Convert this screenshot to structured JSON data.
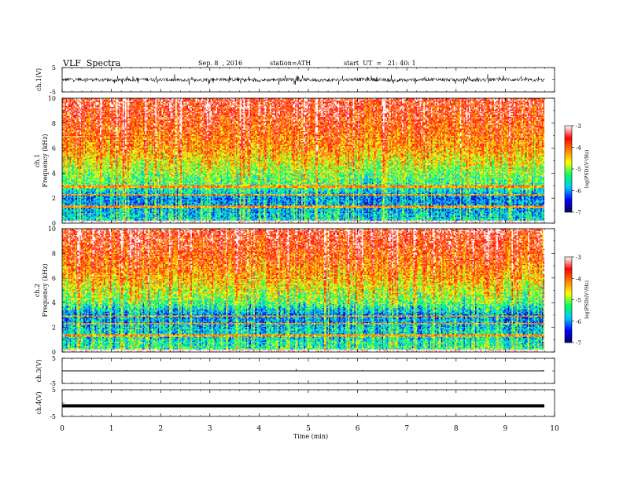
{
  "header": {
    "title": "VLF  Spectra",
    "date": "Sep. 8  , 2016",
    "station": "station=ATH",
    "start": "start  UT  =   21: 40: 1"
  },
  "chart_data": [
    {
      "type": "line",
      "panel": "ch1-waveform",
      "ylabel": "ch.1(V)",
      "ylim": [
        -5,
        5
      ],
      "yticks": [
        "5",
        "-5"
      ],
      "xlim": [
        0,
        10
      ],
      "description_values": {
        "baseline": 0,
        "envelope": [
          -1.3,
          1.3
        ]
      }
    },
    {
      "type": "heatmap",
      "panel": "ch1-spectrogram",
      "ylabel": "Frequency  (kHz)",
      "channel_label": "ch.1",
      "ylim": [
        0,
        10
      ],
      "yticks": [
        "0",
        "2",
        "4",
        "6",
        "8",
        "10"
      ],
      "xlim": [
        0,
        9.8
      ],
      "colorbar": {
        "label": "log(PSD)(V²/Hz)",
        "ticks": [
          "-3",
          "-4",
          "-5",
          "-6",
          "-7"
        ],
        "range": [
          -7,
          -3
        ]
      },
      "psd_profile": [
        [
          0,
          -5.5
        ],
        [
          1,
          -5.8
        ],
        [
          2,
          -6.0
        ],
        [
          3,
          -5.3
        ],
        [
          4,
          -5.0
        ],
        [
          5,
          -4.6
        ],
        [
          6,
          -4.2
        ],
        [
          7,
          -4.0
        ],
        [
          8,
          -3.8
        ],
        [
          9,
          -3.6
        ],
        [
          10,
          -3.5
        ]
      ]
    },
    {
      "type": "heatmap",
      "panel": "ch2-spectrogram",
      "ylabel": "Frequency  (kHz)",
      "channel_label": "ch.2",
      "ylim": [
        0,
        10
      ],
      "yticks": [
        "0",
        "2",
        "4",
        "6",
        "8",
        "10"
      ],
      "xlim": [
        0,
        9.8
      ],
      "colorbar": {
        "label": "log(PSD)(V²/Hz)",
        "ticks": [
          "-3",
          "-4",
          "-5",
          "-6",
          "-7"
        ],
        "range": [
          -7,
          -3
        ]
      },
      "psd_profile": [
        [
          0,
          -5.3
        ],
        [
          1,
          -5.6
        ],
        [
          2,
          -5.8
        ],
        [
          3,
          -6.1
        ],
        [
          4,
          -5.2
        ],
        [
          5,
          -4.8
        ],
        [
          6,
          -4.4
        ],
        [
          7,
          -4.1
        ],
        [
          8,
          -3.9
        ],
        [
          9,
          -3.7
        ],
        [
          10,
          -3.5
        ]
      ]
    },
    {
      "type": "line",
      "panel": "ch3-waveform",
      "ylabel": "ch.3(V)",
      "ylim": [
        -5,
        5
      ],
      "yticks": [
        "5",
        "-5"
      ],
      "xlim": [
        0,
        10
      ],
      "description_values": {
        "baseline": 0
      }
    },
    {
      "type": "line",
      "panel": "ch4-waveform",
      "ylabel": "ch.4(V)",
      "ylim": [
        -5,
        5
      ],
      "yticks": [
        "5",
        "-5"
      ],
      "xlim": [
        0,
        10
      ],
      "description_values": {
        "baseline": 0
      }
    }
  ],
  "xaxis": {
    "label": "Time  (min)",
    "ticks": [
      "0",
      "1",
      "2",
      "3",
      "4",
      "5",
      "6",
      "7",
      "8",
      "9",
      "10"
    ]
  },
  "colors": {
    "colormap": [
      "#000060",
      "#0000ff",
      "#00c8ff",
      "#00ff60",
      "#ffff00",
      "#ff8000",
      "#ff0000",
      "#ffffff"
    ]
  }
}
